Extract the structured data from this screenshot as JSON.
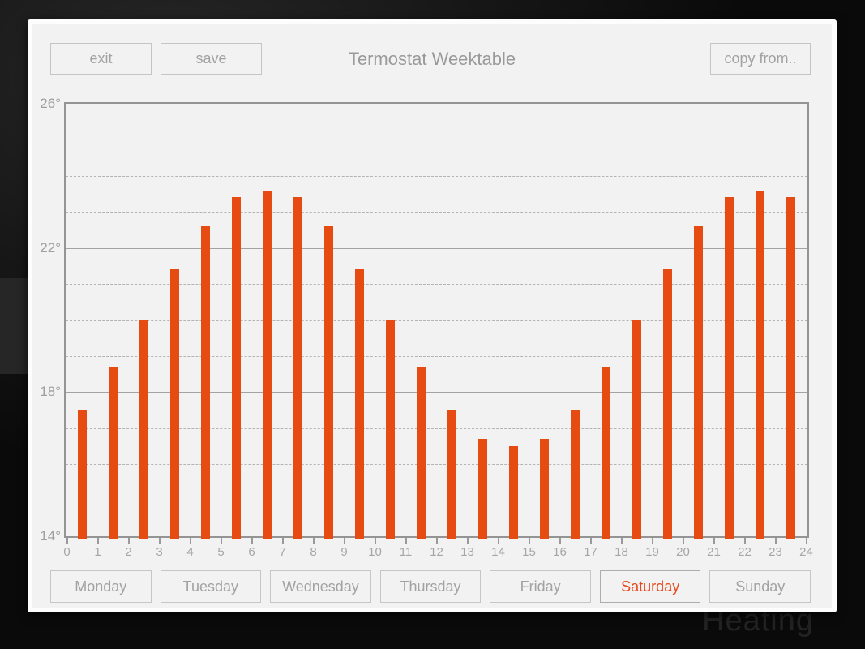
{
  "window": {
    "title": "Termostat Weektable"
  },
  "toolbar": {
    "exit_label": "exit",
    "save_label": "save",
    "copy_from_label": "copy from.."
  },
  "background": {
    "behind_panel_text": "Heating"
  },
  "days": {
    "labels": [
      "Monday",
      "Tuesday",
      "Wednesday",
      "Thursday",
      "Friday",
      "Saturday",
      "Sunday"
    ],
    "selected": "Saturday"
  },
  "colors": {
    "bar": "#e64b12",
    "selected_day_text": "#e8491c",
    "panel_bg": "#f2f2f2",
    "grid_major": "#a3a3a3",
    "grid_minor": "#b3b3b3",
    "muted_text": "#a2a2a2"
  },
  "chart_data": {
    "type": "bar",
    "title": "Termostat Weektable",
    "x": [
      0,
      1,
      2,
      3,
      4,
      5,
      6,
      7,
      8,
      9,
      10,
      11,
      12,
      13,
      14,
      15,
      16,
      17,
      18,
      19,
      20,
      21,
      22,
      23
    ],
    "values": [
      17.5,
      18.7,
      20.0,
      21.4,
      22.6,
      23.4,
      23.6,
      23.4,
      22.6,
      21.4,
      20.0,
      18.7,
      17.5,
      16.7,
      16.5,
      16.7,
      17.5,
      18.7,
      20.0,
      21.4,
      22.6,
      23.4,
      23.6,
      23.4
    ],
    "x_tick_labels": [
      "0",
      "1",
      "2",
      "3",
      "4",
      "5",
      "6",
      "7",
      "8",
      "9",
      "10",
      "11",
      "12",
      "13",
      "14",
      "15",
      "16",
      "17",
      "18",
      "19",
      "20",
      "21",
      "22",
      "23",
      "24"
    ],
    "y_tick_values": [
      26,
      22,
      18,
      14
    ],
    "y_tick_labels": [
      "26°",
      "22°",
      "18°",
      "14°"
    ],
    "ylim": [
      14,
      26
    ],
    "y_minor_step": 1,
    "y_major_step": 4,
    "grid": true,
    "legend": false,
    "bar_color": "#e64b12"
  }
}
